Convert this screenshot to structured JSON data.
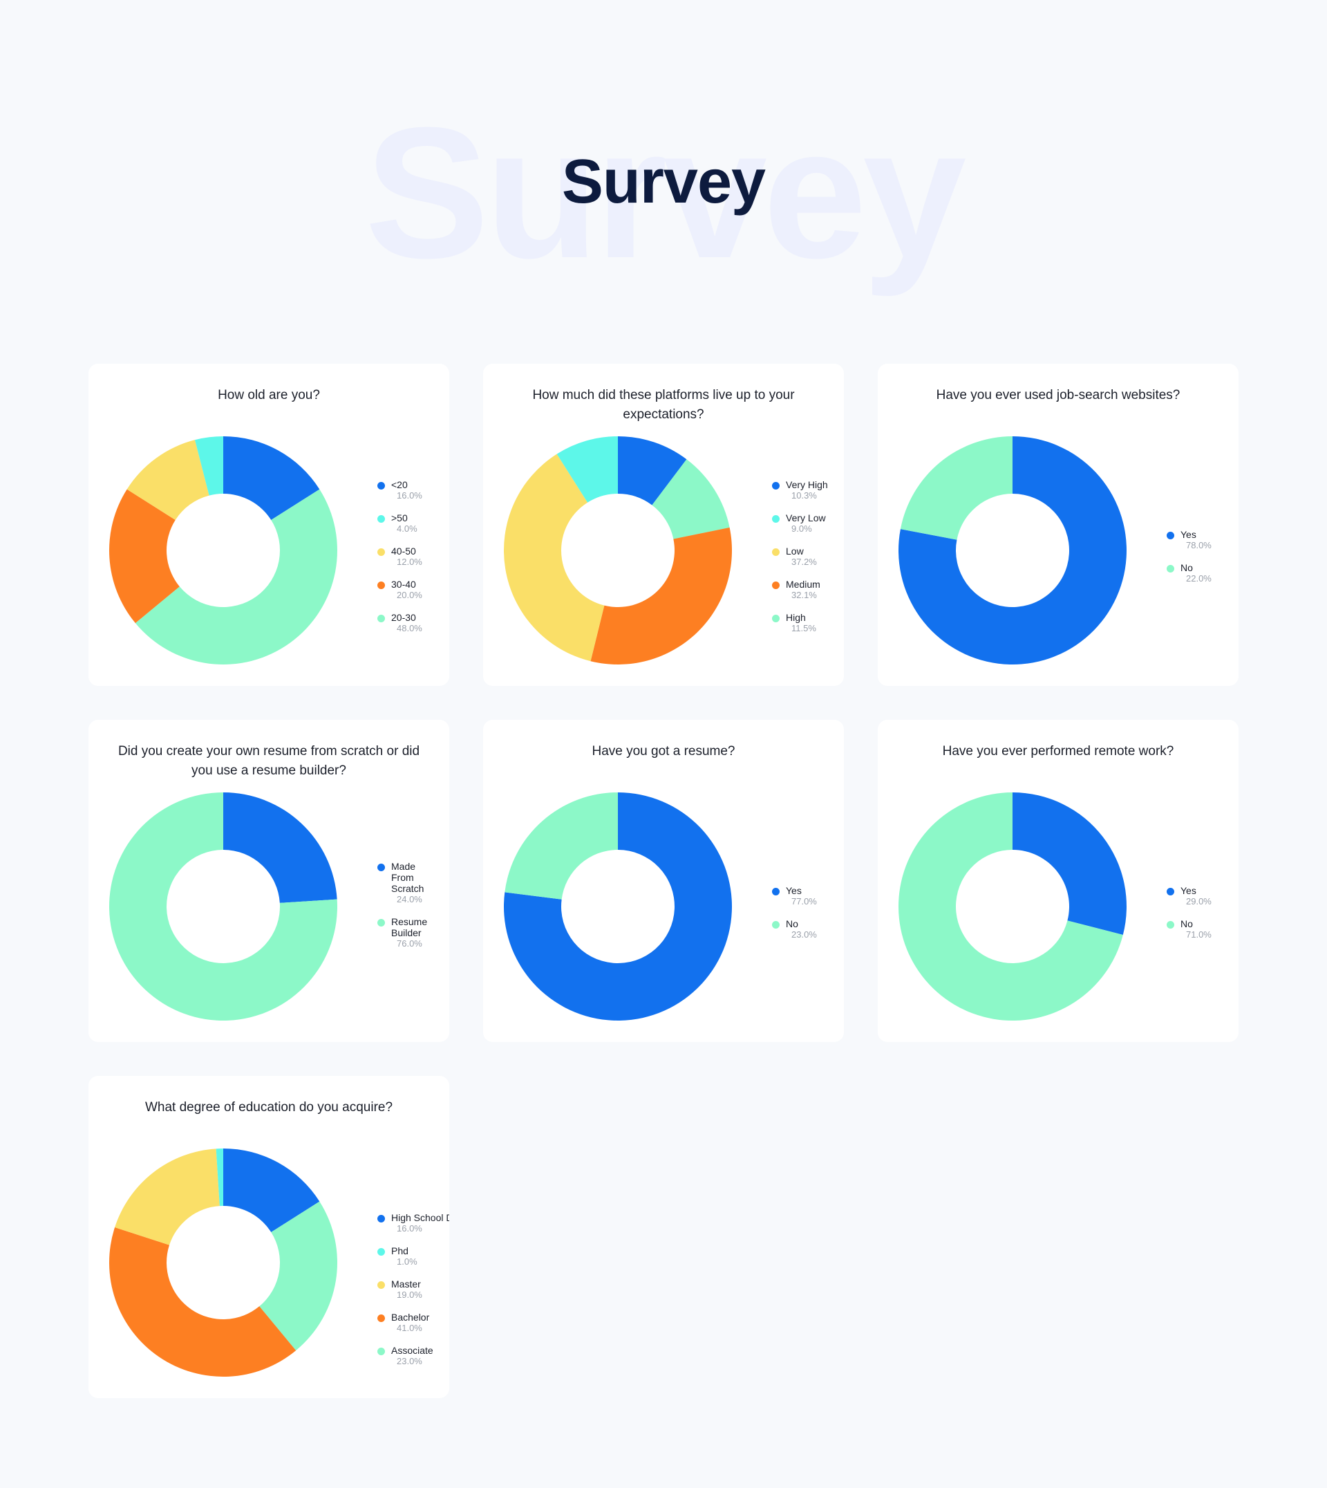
{
  "page": {
    "background_word": "Survey",
    "title": "Survey"
  },
  "colors": {
    "blue": "#1271ee",
    "cyan": "#5df7e9",
    "yellow": "#fadf68",
    "orange": "#fd7f22",
    "mint": "#8cf8c8"
  },
  "chart_data": [
    {
      "type": "pie",
      "title": "How old are you?",
      "slices": [
        {
          "label": "<20",
          "value": 16.0,
          "display": "16.0%",
          "color": "#1271ee"
        },
        {
          "label": ">50",
          "value": 4.0,
          "display": "4.0%",
          "color": "#5df7e9"
        },
        {
          "label": "40-50",
          "value": 12.0,
          "display": "12.0%",
          "color": "#fadf68"
        },
        {
          "label": "30-40",
          "value": 20.0,
          "display": "20.0%",
          "color": "#fd7f22"
        },
        {
          "label": "20-30",
          "value": 48.0,
          "display": "48.0%",
          "color": "#8cf8c8"
        }
      ],
      "draw_order": [
        0,
        4,
        3,
        2,
        1
      ]
    },
    {
      "type": "pie",
      "title": "How much did these platforms live up to your expectations?",
      "slices": [
        {
          "label": "Very High",
          "value": 10.3,
          "display": "10.3%",
          "color": "#1271ee"
        },
        {
          "label": "Very Low",
          "value": 9.0,
          "display": "9.0%",
          "color": "#5df7e9"
        },
        {
          "label": "Low",
          "value": 37.2,
          "display": "37.2%",
          "color": "#fadf68"
        },
        {
          "label": "Medium",
          "value": 32.1,
          "display": "32.1%",
          "color": "#fd7f22"
        },
        {
          "label": "High",
          "value": 11.5,
          "display": "11.5%",
          "color": "#8cf8c8"
        }
      ],
      "draw_order": [
        0,
        4,
        3,
        2,
        1
      ]
    },
    {
      "type": "pie",
      "title": "Have you ever used job-search websites?",
      "slices": [
        {
          "label": "Yes",
          "value": 78.0,
          "display": "78.0%",
          "color": "#1271ee"
        },
        {
          "label": "No",
          "value": 22.0,
          "display": "22.0%",
          "color": "#8cf8c8"
        }
      ],
      "draw_order": [
        0,
        1
      ]
    },
    {
      "type": "pie",
      "title": "Did you create your own resume from scratch or did you use a resume builder?",
      "slices": [
        {
          "label": "Made From Scratch",
          "value": 24.0,
          "display": "24.0%",
          "color": "#1271ee"
        },
        {
          "label": "Resume Builder",
          "value": 76.0,
          "display": "76.0%",
          "color": "#8cf8c8"
        }
      ],
      "draw_order": [
        0,
        1
      ]
    },
    {
      "type": "pie",
      "title": "Have you got a resume?",
      "slices": [
        {
          "label": "Yes",
          "value": 77.0,
          "display": "77.0%",
          "color": "#1271ee"
        },
        {
          "label": "No",
          "value": 23.0,
          "display": "23.0%",
          "color": "#8cf8c8"
        }
      ],
      "draw_order": [
        0,
        1
      ]
    },
    {
      "type": "pie",
      "title": "Have you ever performed remote work?",
      "slices": [
        {
          "label": "Yes",
          "value": 29.0,
          "display": "29.0%",
          "color": "#1271ee"
        },
        {
          "label": "No",
          "value": 71.0,
          "display": "71.0%",
          "color": "#8cf8c8"
        }
      ],
      "draw_order": [
        0,
        1
      ]
    },
    {
      "type": "pie",
      "title": "What degree of education do you acquire?",
      "slices": [
        {
          "label": "High School Diploma",
          "value": 16.0,
          "display": "16.0%",
          "color": "#1271ee"
        },
        {
          "label": "Phd",
          "value": 1.0,
          "display": "1.0%",
          "color": "#5df7e9"
        },
        {
          "label": "Master",
          "value": 19.0,
          "display": "19.0%",
          "color": "#fadf68"
        },
        {
          "label": "Bachelor",
          "value": 41.0,
          "display": "41.0%",
          "color": "#fd7f22"
        },
        {
          "label": "Associate",
          "value": 23.0,
          "display": "23.0%",
          "color": "#8cf8c8"
        }
      ],
      "draw_order": [
        0,
        4,
        3,
        2,
        1
      ]
    }
  ]
}
